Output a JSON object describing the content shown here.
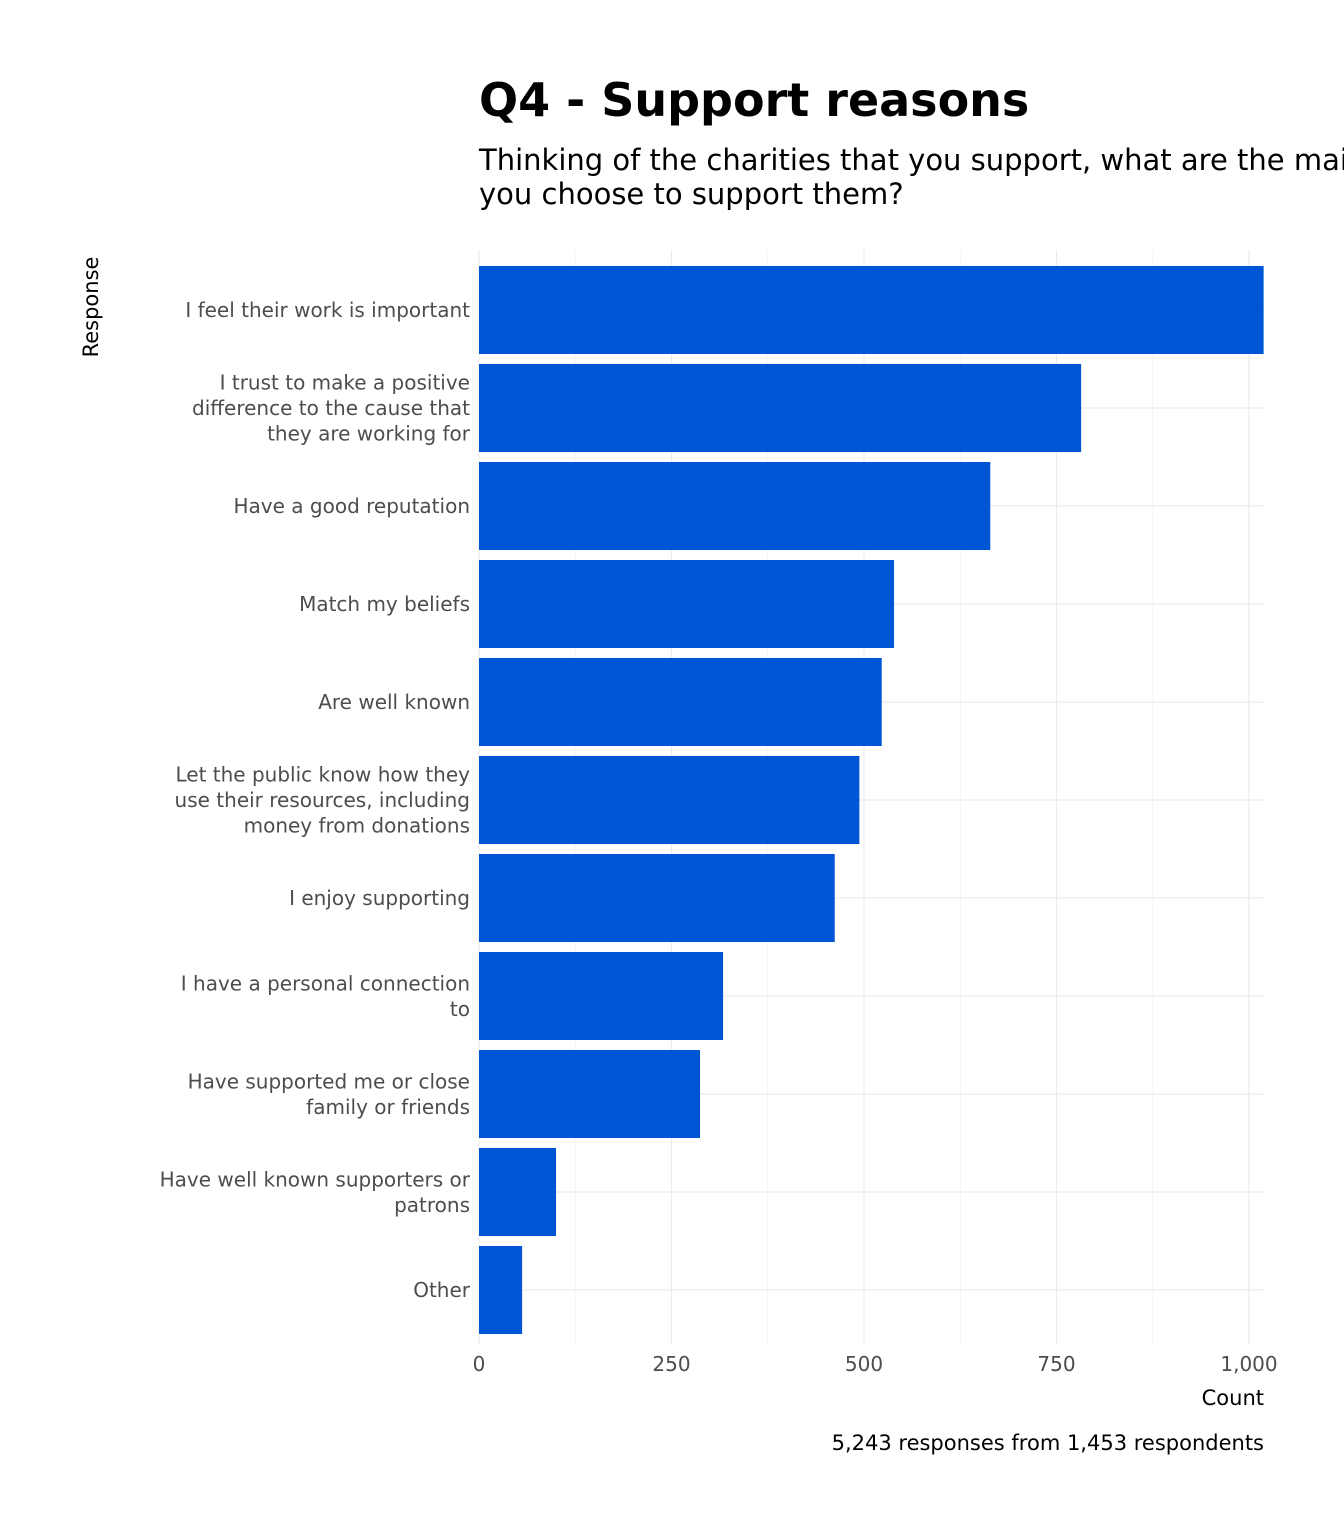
{
  "chart_data": {
    "type": "bar",
    "orientation": "horizontal",
    "title": "Q4 - Support reasons",
    "subtitle": [
      "Thinking of the charities that you support, what are the main reasons",
      "you choose to support them?"
    ],
    "xlabel": "Count",
    "ylabel": "Response",
    "caption": "5,243 responses from 1,453 respondents",
    "xlim": [
      0,
      1020
    ],
    "xticks": [
      0,
      250,
      500,
      750,
      1000
    ],
    "xtick_labels": [
      "0",
      "250",
      "500",
      "750",
      "1,000"
    ],
    "grid": true,
    "bar_color": "#0055d4",
    "categories": [
      [
        "I feel their work is important"
      ],
      [
        "I trust to make a positive",
        "difference to the cause that",
        "they are working for"
      ],
      [
        "Have a good reputation"
      ],
      [
        "Match my beliefs"
      ],
      [
        "Are well known"
      ],
      [
        "Let the public know how they",
        "use their resources, including",
        "money from donations"
      ],
      [
        "I enjoy supporting"
      ],
      [
        "I have a personal connection",
        "to"
      ],
      [
        "Have supported me or close",
        "family or friends"
      ],
      [
        "Have well known supporters or",
        "patrons"
      ],
      [
        "Other"
      ]
    ],
    "values": [
      1019,
      782,
      664,
      539,
      523,
      494,
      462,
      317,
      287,
      100,
      56
    ]
  }
}
